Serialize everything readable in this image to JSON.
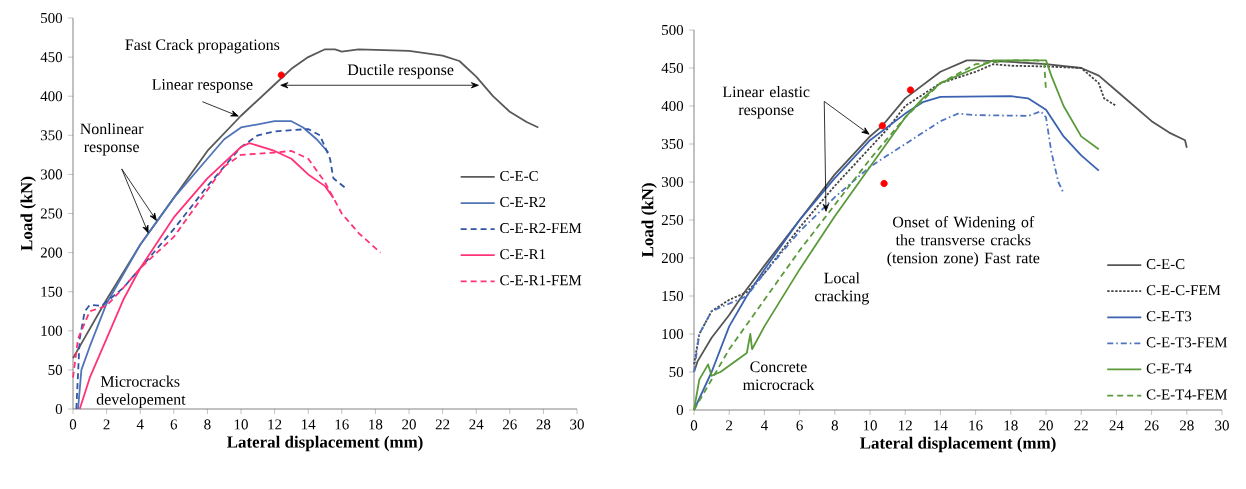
{
  "chart_data": [
    {
      "type": "line",
      "xlabel": "Lateral displacement (mm)",
      "ylabel": "Load (kN)",
      "xlim": [
        0,
        30
      ],
      "ylim": [
        0,
        500
      ],
      "xticks": [
        0,
        2,
        4,
        6,
        8,
        10,
        12,
        14,
        16,
        18,
        20,
        22,
        24,
        26,
        28,
        30
      ],
      "yticks": [
        0,
        50,
        100,
        150,
        200,
        250,
        300,
        350,
        400,
        450,
        500
      ],
      "grid": false,
      "legend": "right",
      "marker": "none",
      "annotations": [
        "Fast Crack propagations",
        {
          "text": "Linear response",
          "x": 9.9,
          "y": 374
        },
        "Ductile response",
        {
          "text": "Nonlinear response",
          "x": 5,
          "y": 240
        },
        "Microcracks developement"
      ],
      "series": [
        {
          "name": "C-E-C",
          "color": "#595959",
          "line_style": "solid",
          "x": [
            0,
            2,
            4,
            6,
            8,
            10,
            12,
            13,
            14,
            15,
            15.6,
            16,
            17,
            20,
            22,
            23,
            24,
            25,
            26,
            27,
            27.7
          ],
          "values": [
            65,
            140,
            210,
            270,
            330,
            375,
            415,
            435,
            450,
            460,
            460,
            457,
            460,
            458,
            452,
            445,
            425,
            400,
            380,
            367,
            360
          ]
        },
        {
          "name": "C-E-R2",
          "color": "#4f74b8",
          "line_style": "solid",
          "x": [
            0.3,
            0.5,
            1,
            2,
            4,
            6,
            8,
            9,
            10,
            12,
            13,
            13.7,
            14.5,
            15.2
          ],
          "values": [
            0,
            50,
            80,
            135,
            210,
            270,
            320,
            345,
            360,
            368,
            368,
            360,
            345,
            328
          ]
        },
        {
          "name": "C-E-R2-FEM",
          "color": "#2f55a4",
          "line_style": "dashed",
          "x": [
            0.2,
            0.4,
            0.7,
            1,
            1.7,
            3,
            4,
            6,
            8,
            9,
            10,
            11,
            12,
            14,
            14.7,
            15.3,
            15.5,
            16.2
          ],
          "values": [
            0,
            90,
            125,
            133,
            132,
            155,
            180,
            230,
            285,
            310,
            335,
            350,
            355,
            358,
            350,
            320,
            295,
            283
          ]
        },
        {
          "name": "C-E-R1",
          "color": "#ff3377",
          "line_style": "solid",
          "x": [
            0.4,
            1,
            2,
            3,
            4,
            6,
            8,
            10,
            10.5,
            12,
            13,
            14,
            15,
            15.5
          ],
          "values": [
            0,
            40,
            90,
            140,
            180,
            245,
            295,
            335,
            340,
            330,
            320,
            300,
            285,
            270
          ]
        },
        {
          "name": "C-E-R1-FEM",
          "color": "#ff3377",
          "line_style": "dashed",
          "x": [
            0,
            0.3,
            0.7,
            1,
            2,
            3,
            4,
            6,
            8,
            9,
            10,
            12,
            13,
            14,
            15,
            16,
            17,
            18.3
          ],
          "values": [
            40,
            90,
            110,
            125,
            132,
            155,
            180,
            220,
            280,
            310,
            325,
            328,
            330,
            320,
            290,
            250,
            225,
            200
          ]
        },
        {
          "type": "scatter",
          "color": "#ff0000",
          "marker": "circle",
          "x": [
            12.4
          ],
          "values": [
            427
          ]
        }
      ]
    },
    {
      "type": "line",
      "xlabel": "Lateral displacement (mm)",
      "ylabel": "Load (kN)",
      "xlim": [
        0,
        30
      ],
      "ylim": [
        0,
        500
      ],
      "xticks": [
        0,
        2,
        4,
        6,
        8,
        10,
        12,
        14,
        16,
        18,
        20,
        22,
        24,
        26,
        28,
        30
      ],
      "yticks": [
        0,
        50,
        100,
        150,
        200,
        250,
        300,
        350,
        400,
        450,
        500
      ],
      "grid": false,
      "legend": "bottom right",
      "marker": "none",
      "annotations": [
        {
          "text": "Linear elastic response",
          "x": 10.0,
          "y": 362
        },
        "Local cracking",
        "Concrete microcrack",
        "Onset of Widening of the transverse cracks (tension zone) Fast rate"
      ],
      "series": [
        {
          "name": "C-E-C",
          "color": "#555555",
          "line_style": "solid",
          "x": [
            0,
            0.2,
            1,
            2,
            2.9,
            4,
            6,
            8,
            10,
            10.7,
            12,
            14,
            15.5,
            16,
            18,
            20,
            22,
            23,
            24,
            26,
            27,
            27.9,
            28
          ],
          "values": [
            50,
            64,
            95,
            125,
            156,
            190,
            250,
            310,
            360,
            374,
            410,
            445,
            460,
            460,
            458,
            455,
            450,
            440,
            420,
            380,
            365,
            355,
            345
          ]
        },
        {
          "name": "C-E-C-FEM",
          "color": "#444444",
          "line_style": "dotted",
          "x": [
            0,
            0.3,
            1,
            2,
            3,
            4,
            6,
            8,
            10,
            11,
            12,
            14,
            16,
            17,
            18,
            20,
            22,
            23,
            23.3,
            24
          ],
          "values": [
            60,
            100,
            130,
            145,
            155,
            180,
            240,
            295,
            345,
            370,
            400,
            430,
            445,
            455,
            453,
            452,
            450,
            430,
            410,
            400
          ]
        },
        {
          "name": "C-E-T3",
          "color": "#3a62b0",
          "line_style": "solid",
          "x": [
            0,
            1,
            2,
            3,
            4,
            6,
            8,
            10,
            12,
            13,
            14,
            18,
            19,
            20,
            21,
            22,
            23
          ],
          "values": [
            0,
            50,
            110,
            150,
            185,
            250,
            305,
            355,
            390,
            405,
            412,
            413,
            410,
            395,
            360,
            335,
            315
          ]
        },
        {
          "name": "C-E-T3-FEM",
          "color": "#4f74c0",
          "line_style": "dashdot",
          "x": [
            0,
            0.3,
            1,
            2,
            3,
            4,
            6,
            8,
            10,
            12,
            14,
            15,
            16,
            19,
            19.7,
            20,
            20.3,
            20.7,
            21
          ],
          "values": [
            50,
            100,
            130,
            140,
            150,
            180,
            235,
            280,
            320,
            350,
            380,
            390,
            388,
            387,
            393,
            385,
            340,
            300,
            285
          ]
        },
        {
          "name": "C-E-T4",
          "color": "#5a9a3a",
          "line_style": "solid",
          "x": [
            0,
            0.3,
            0.8,
            1,
            1.5,
            3,
            3.2,
            3.3,
            4,
            6,
            8,
            10,
            12,
            13,
            14,
            16,
            17,
            20,
            20.3,
            21,
            22,
            23
          ],
          "values": [
            0,
            40,
            60,
            45,
            50,
            75,
            100,
            80,
            110,
            185,
            255,
            320,
            385,
            410,
            430,
            450,
            460,
            460,
            440,
            400,
            360,
            343
          ]
        },
        {
          "name": "C-E-T4-FEM",
          "color": "#5a9a3a",
          "line_style": "dashed",
          "x": [
            0,
            1,
            2,
            4,
            6,
            8,
            10,
            12,
            14,
            16,
            18,
            19.5,
            19.9,
            20
          ],
          "values": [
            0,
            40,
            80,
            145,
            210,
            270,
            330,
            385,
            430,
            455,
            460,
            460,
            455,
            420
          ]
        },
        {
          "type": "scatter",
          "color": "#ff0000",
          "marker": "circle",
          "x": [
            10.7,
            12.3,
            10.8
          ],
          "values": [
            374,
            421,
            298
          ]
        }
      ]
    }
  ]
}
